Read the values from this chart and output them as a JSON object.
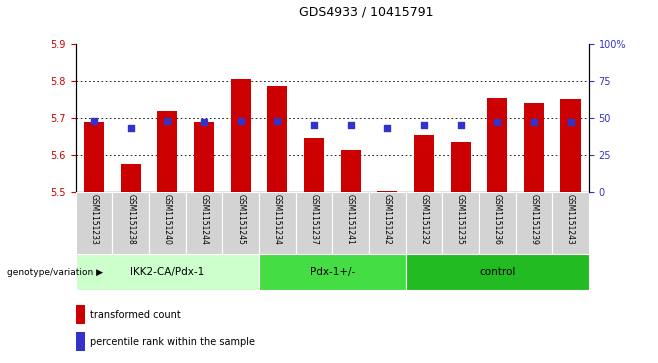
{
  "title": "GDS4933 / 10415791",
  "samples": [
    "GSM1151233",
    "GSM1151238",
    "GSM1151240",
    "GSM1151244",
    "GSM1151245",
    "GSM1151234",
    "GSM1151237",
    "GSM1151241",
    "GSM1151242",
    "GSM1151232",
    "GSM1151235",
    "GSM1151236",
    "GSM1151239",
    "GSM1151243"
  ],
  "bar_values": [
    5.69,
    5.575,
    5.72,
    5.69,
    5.805,
    5.785,
    5.645,
    5.615,
    5.505,
    5.655,
    5.635,
    5.755,
    5.74,
    5.75
  ],
  "dot_values": [
    48,
    43,
    48,
    47,
    48,
    48,
    45,
    45,
    43,
    45,
    45,
    47,
    47,
    47
  ],
  "ymin": 5.5,
  "ymax": 5.9,
  "yticks": [
    5.5,
    5.6,
    5.7,
    5.8,
    5.9
  ],
  "right_yticks": [
    0,
    25,
    50,
    75,
    100
  ],
  "bar_color": "#CC0000",
  "dot_color": "#3333CC",
  "bar_width": 0.55,
  "groups": [
    {
      "label": "IKK2-CA/Pdx-1",
      "start": 0,
      "end": 5,
      "color": "#ccffcc"
    },
    {
      "label": "Pdx-1+/-",
      "start": 5,
      "end": 9,
      "color": "#44dd44"
    },
    {
      "label": "control",
      "start": 9,
      "end": 14,
      "color": "#22bb22"
    }
  ],
  "legend_items": [
    {
      "label": "transformed count",
      "color": "#CC0000"
    },
    {
      "label": "percentile rank within the sample",
      "color": "#3333CC"
    }
  ],
  "xlabel_left": "genotype/variation",
  "tick_color_left": "#CC0000",
  "tick_color_right": "#3333CC",
  "label_bg_color": "#d3d3d3"
}
